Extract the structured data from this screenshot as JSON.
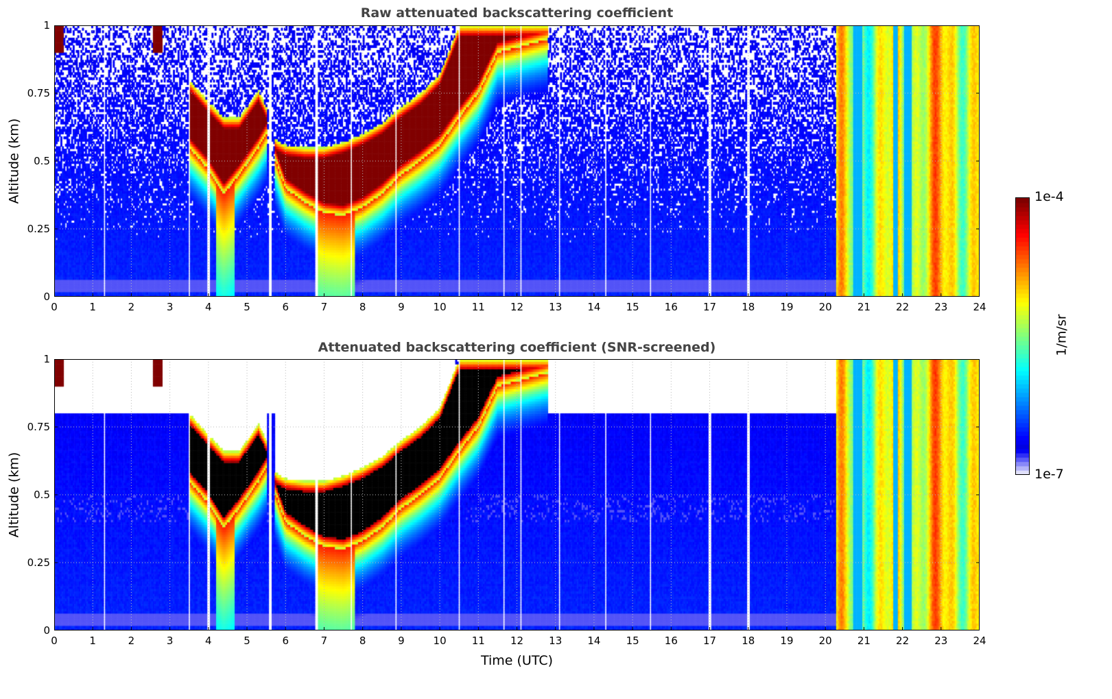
{
  "chart_data": [
    {
      "type": "heatmap",
      "title": "Raw attenuated backscattering coefficient",
      "xlabel": "",
      "ylabel": "Altitude (km)",
      "xlim": [
        0,
        24
      ],
      "ylim": [
        0,
        1
      ],
      "xticks": [
        0,
        1,
        2,
        3,
        4,
        5,
        6,
        7,
        8,
        9,
        10,
        11,
        12,
        13,
        14,
        15,
        16,
        17,
        18,
        19,
        20,
        21,
        22,
        23,
        24
      ],
      "yticks": [
        "0",
        "0.25",
        "0.5",
        "0.75",
        "1"
      ],
      "screened": false,
      "grid": true
    },
    {
      "type": "heatmap",
      "title": "Attenuated backscattering coefficient (SNR-screened)",
      "xlabel": "Time (UTC)",
      "ylabel": "Altitude (km)",
      "xlim": [
        0,
        24
      ],
      "ylim": [
        0,
        1
      ],
      "xticks": [
        0,
        1,
        2,
        3,
        4,
        5,
        6,
        7,
        8,
        9,
        10,
        11,
        12,
        13,
        14,
        15,
        16,
        17,
        18,
        19,
        20,
        21,
        22,
        23,
        24
      ],
      "yticks": [
        "0",
        "0.25",
        "0.5",
        "0.75",
        "1"
      ],
      "screened": true,
      "grid": true
    }
  ],
  "colorbar": {
    "label": "1/m/sr",
    "max_label": "1e-4",
    "min_label": "1e-7",
    "scale": "log",
    "colormap": "jet"
  },
  "features": {
    "cloud_layer_km": [
      [
        3.5,
        0.55,
        0.8
      ],
      [
        4.0,
        0.47,
        0.72
      ],
      [
        4.4,
        0.38,
        0.66
      ],
      [
        4.8,
        0.45,
        0.66
      ],
      [
        5.3,
        0.55,
        0.76
      ],
      [
        5.5,
        0.6,
        0.7
      ],
      [
        5.75,
        0.5,
        0.58
      ],
      [
        6.0,
        0.4,
        0.56
      ],
      [
        6.5,
        0.35,
        0.55
      ],
      [
        7.0,
        0.31,
        0.55
      ],
      [
        7.5,
        0.3,
        0.57
      ],
      [
        8.0,
        0.33,
        0.6
      ],
      [
        8.5,
        0.38,
        0.64
      ],
      [
        9.0,
        0.45,
        0.7
      ],
      [
        9.5,
        0.5,
        0.75
      ],
      [
        10.0,
        0.56,
        0.82
      ],
      [
        10.5,
        0.66,
        1.0
      ],
      [
        11.0,
        0.75,
        1.0
      ],
      [
        11.5,
        0.9,
        1.0
      ],
      [
        12.8,
        0.95,
        1.0
      ]
    ],
    "precipitation_hours": [
      20.3,
      24
    ],
    "data_gaps_hours": [
      1.3,
      3.5,
      4.0,
      5.6,
      6.8,
      7.7,
      8.85,
      10.5,
      11.65,
      12.1,
      13.1,
      14.3,
      15.45,
      17.0,
      18.0
    ]
  }
}
